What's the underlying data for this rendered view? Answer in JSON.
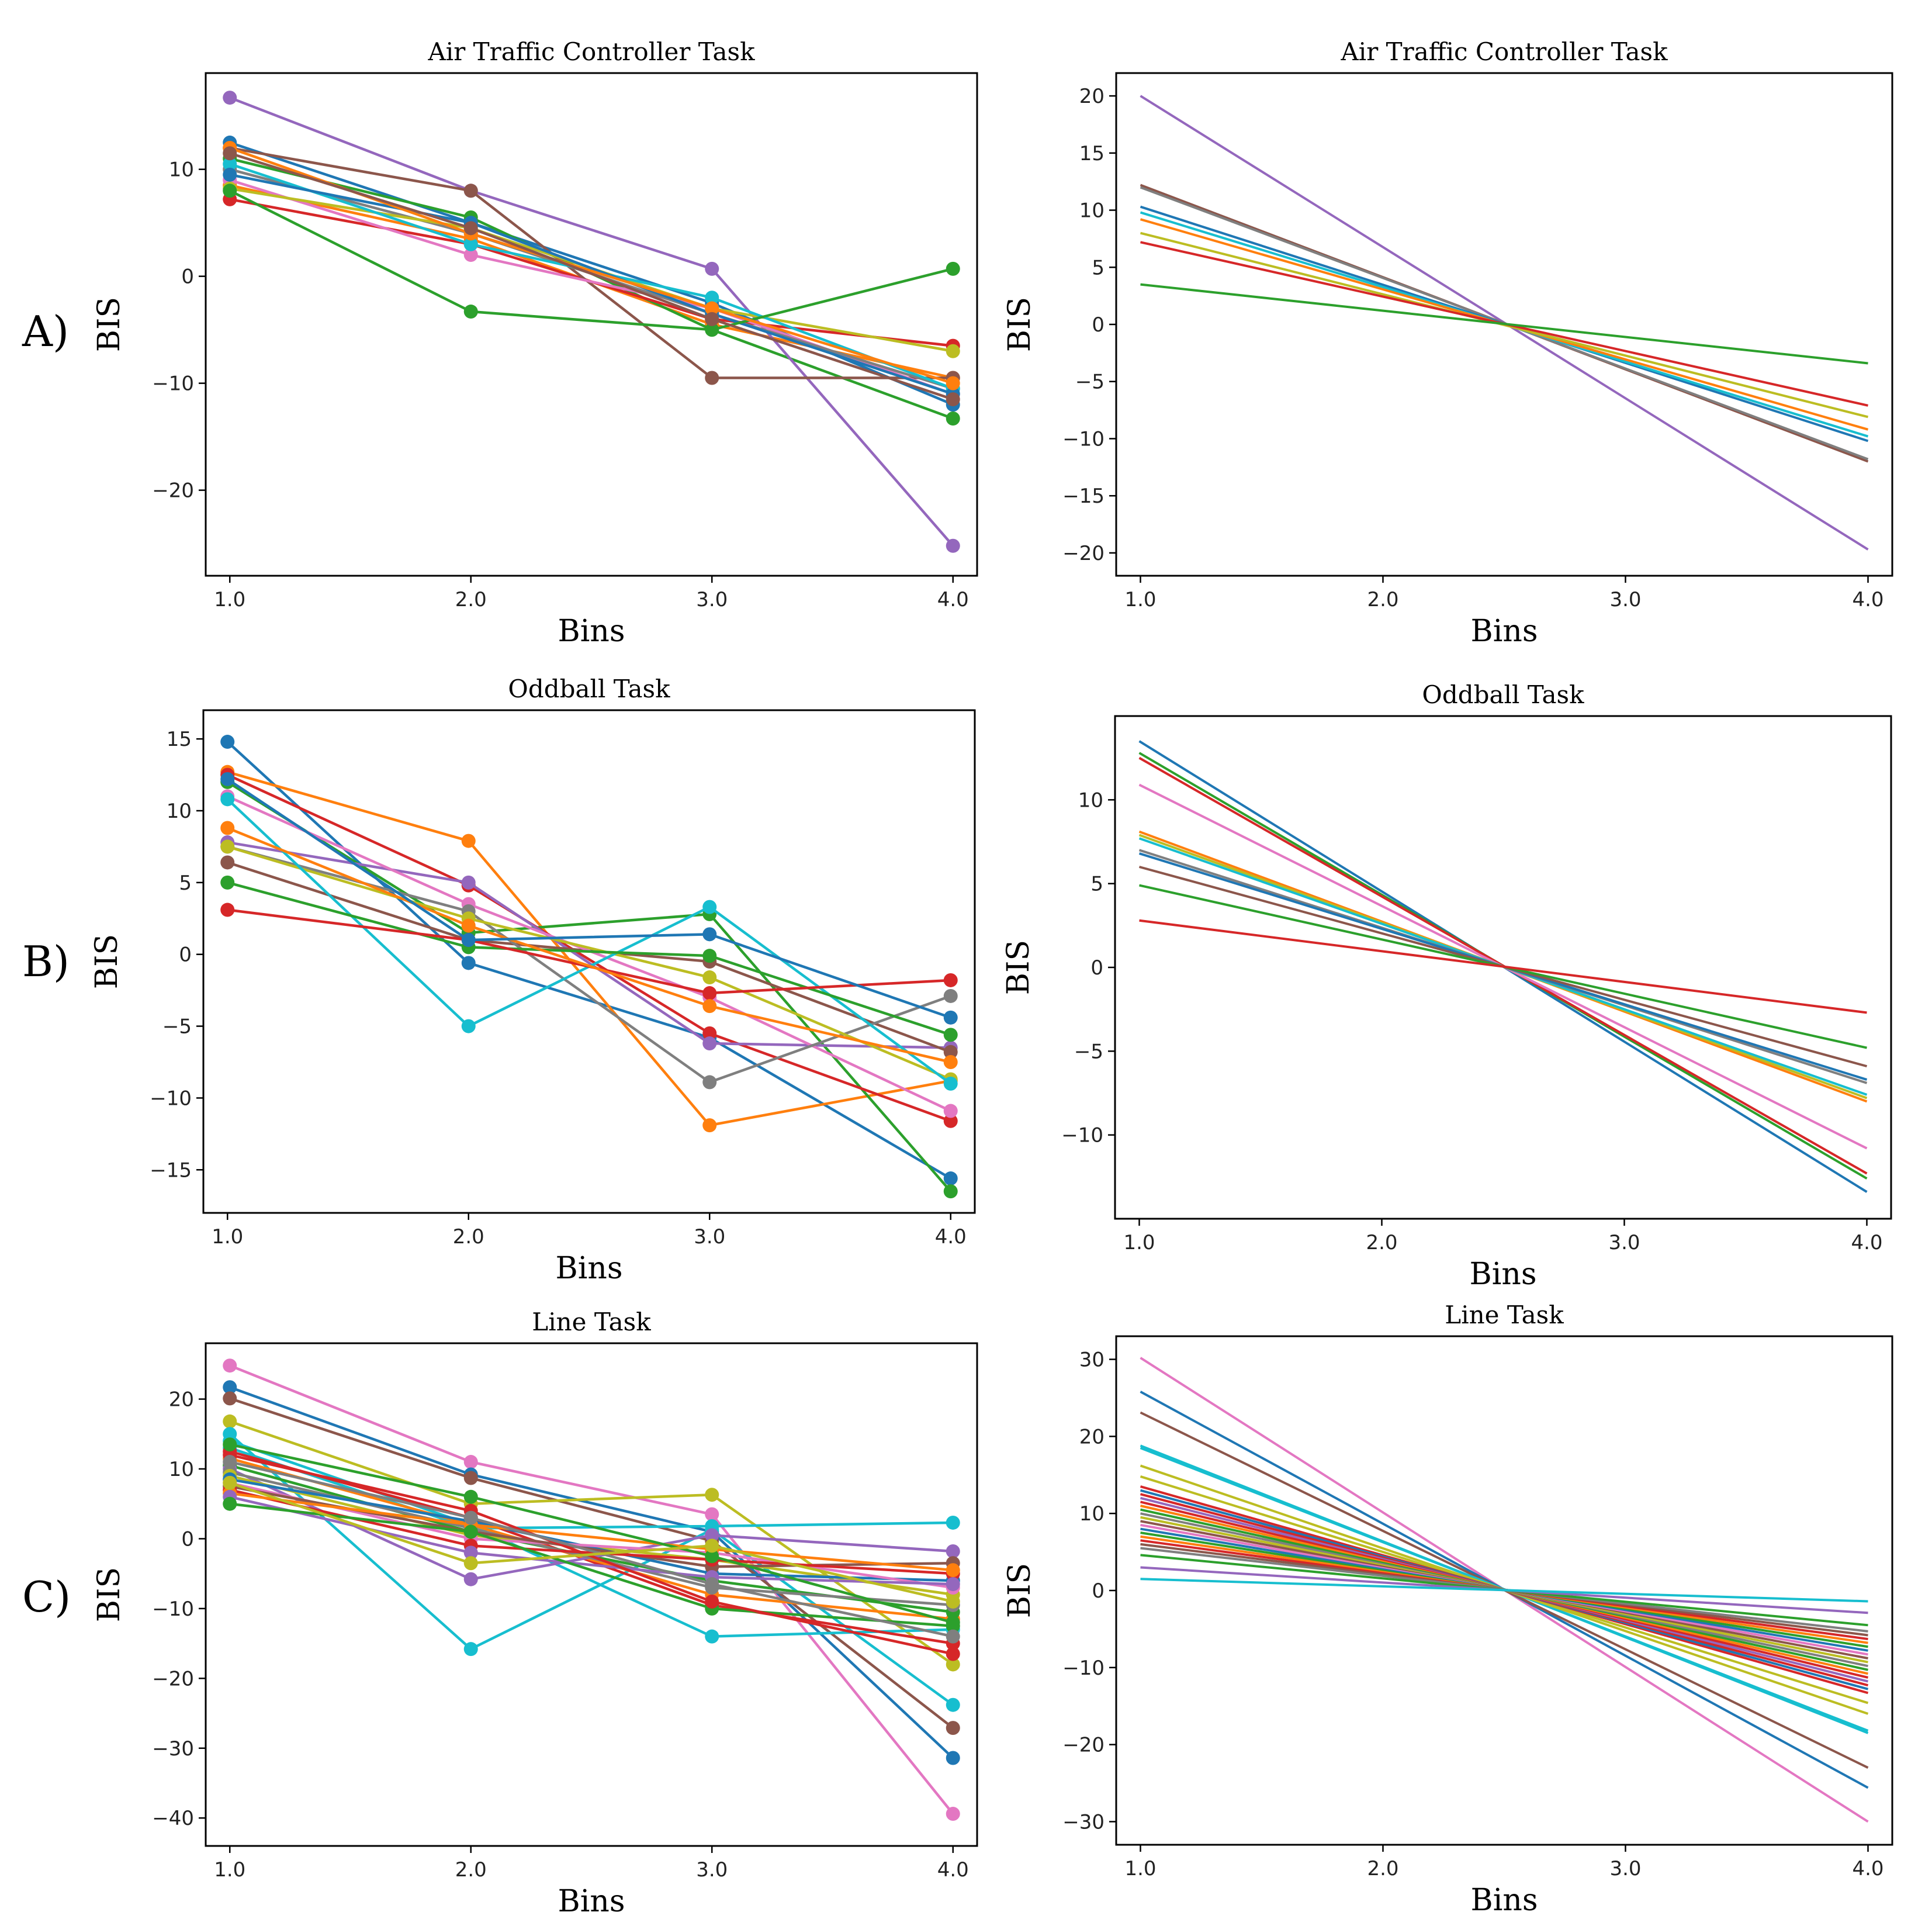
{
  "palette": [
    "#1f77b4",
    "#ff7f0e",
    "#2ca02c",
    "#d62728",
    "#9467bd",
    "#8c564b",
    "#e377c2",
    "#7f7f7f",
    "#bcbd22",
    "#17becf"
  ],
  "row_labels": [
    "A)",
    "B)",
    "C)"
  ],
  "chart_data": [
    {
      "id": "a-left",
      "type": "line",
      "markers": true,
      "title": "Air Traffic Controller Task",
      "xlabel": "Bins",
      "ylabel": "BIS",
      "xlim": [
        0.9,
        4.1
      ],
      "ylim": [
        -28,
        19
      ],
      "xticks": [
        1,
        2,
        3,
        4
      ],
      "xtick_labels": [
        "1.0",
        "2.0",
        "3.0",
        "4.0"
      ],
      "yticks": [
        -20,
        -10,
        0,
        10
      ],
      "ytick_labels": [
        "−20",
        "−10",
        "0",
        "10"
      ],
      "x": [
        1,
        2,
        3,
        4
      ],
      "series": [
        {
          "values": [
            12.5,
            5.0,
            -2.5,
            -12.0
          ],
          "color": "#1f77b4"
        },
        {
          "values": [
            8.5,
            3.5,
            -4.5,
            -9.5
          ],
          "color": "#ff7f0e"
        },
        {
          "values": [
            11.0,
            5.5,
            -5.0,
            -13.3
          ],
          "color": "#2ca02c"
        },
        {
          "values": [
            7.2,
            3.0,
            -4.0,
            -6.5
          ],
          "color": "#d62728"
        },
        {
          "values": [
            16.7,
            8.0,
            0.7,
            -25.2
          ],
          "color": "#9467bd"
        },
        {
          "values": [
            12.0,
            8.0,
            -9.5,
            -9.5
          ],
          "color": "#8c564b"
        },
        {
          "values": [
            9.0,
            2.0,
            -3.0,
            -11.0
          ],
          "color": "#e377c2"
        },
        {
          "values": [
            10.0,
            4.0,
            -3.5,
            -10.5
          ],
          "color": "#7f7f7f"
        },
        {
          "values": [
            8.2,
            4.5,
            -3.0,
            -7.0
          ],
          "color": "#bcbd22"
        },
        {
          "values": [
            10.5,
            3.0,
            -2.0,
            -10.5
          ],
          "color": "#17becf"
        },
        {
          "values": [
            9.5,
            5.0,
            -3.5,
            -11.0
          ],
          "color": "#1f77b4"
        },
        {
          "values": [
            8.0,
            -3.3,
            -5.0,
            0.7
          ],
          "color": "#2ca02c"
        },
        {
          "values": [
            12.0,
            4.0,
            -3.0,
            -10.0
          ],
          "color": "#ff7f0e"
        },
        {
          "values": [
            11.5,
            4.5,
            -4.0,
            -11.5
          ],
          "color": "#8c564b"
        }
      ]
    },
    {
      "id": "a-right",
      "type": "line",
      "markers": false,
      "title": "Air Traffic Controller Task",
      "xlabel": "Bins",
      "ylabel": "BIS",
      "xlim": [
        0.9,
        4.1
      ],
      "ylim": [
        -22,
        22
      ],
      "xticks": [
        1,
        2,
        3,
        4
      ],
      "xtick_labels": [
        "1.0",
        "2.0",
        "3.0",
        "4.0"
      ],
      "yticks": [
        -20,
        -15,
        -10,
        -5,
        0,
        5,
        10,
        15,
        20
      ],
      "ytick_labels": [
        "−20",
        "−15",
        "−10",
        "−5",
        "0",
        "5",
        "10",
        "15",
        "20"
      ],
      "x": [
        1,
        4
      ],
      "series": [
        {
          "values": [
            20.0,
            -19.7
          ],
          "color": "#9467bd"
        },
        {
          "values": [
            12.2,
            -12.0
          ],
          "color": "#8c564b"
        },
        {
          "values": [
            12.0,
            -11.8
          ],
          "color": "#7f7f7f"
        },
        {
          "values": [
            10.3,
            -10.2
          ],
          "color": "#1f77b4"
        },
        {
          "values": [
            9.8,
            -9.8
          ],
          "color": "#17becf"
        },
        {
          "values": [
            9.2,
            -9.2
          ],
          "color": "#ff7f0e"
        },
        {
          "values": [
            8.0,
            -8.1
          ],
          "color": "#bcbd22"
        },
        {
          "values": [
            7.2,
            -7.1
          ],
          "color": "#d62728"
        },
        {
          "values": [
            3.5,
            -3.4
          ],
          "color": "#2ca02c"
        }
      ]
    },
    {
      "id": "b-left",
      "type": "line",
      "markers": true,
      "title": "Oddball Task",
      "xlabel": "Bins",
      "ylabel": "BIS",
      "xlim": [
        0.9,
        4.1
      ],
      "ylim": [
        -18,
        17
      ],
      "xticks": [
        1,
        2,
        3,
        4
      ],
      "xtick_labels": [
        "1.0",
        "2.0",
        "3.0",
        "4.0"
      ],
      "yticks": [
        -15,
        -10,
        -5,
        0,
        5,
        10,
        15
      ],
      "ytick_labels": [
        "−15",
        "−10",
        "−5",
        "0",
        "5",
        "10",
        "15"
      ],
      "x": [
        1,
        2,
        3,
        4
      ],
      "series": [
        {
          "values": [
            14.8,
            -0.6,
            -5.8,
            -15.6
          ],
          "color": "#1f77b4"
        },
        {
          "values": [
            12.7,
            7.9,
            -11.9,
            -8.8
          ],
          "color": "#ff7f0e"
        },
        {
          "values": [
            12.0,
            1.5,
            2.8,
            -16.5
          ],
          "color": "#2ca02c"
        },
        {
          "values": [
            12.5,
            4.8,
            -5.5,
            -11.6
          ],
          "color": "#d62728"
        },
        {
          "values": [
            7.8,
            5.0,
            -6.2,
            -6.5
          ],
          "color": "#9467bd"
        },
        {
          "values": [
            6.4,
            1.0,
            -0.5,
            -6.8
          ],
          "color": "#8c564b"
        },
        {
          "values": [
            11.0,
            3.5,
            -3.0,
            -10.9
          ],
          "color": "#e377c2"
        },
        {
          "values": [
            7.5,
            3.0,
            -8.9,
            -2.9
          ],
          "color": "#7f7f7f"
        },
        {
          "values": [
            7.5,
            2.5,
            -1.6,
            -8.7
          ],
          "color": "#bcbd22"
        },
        {
          "values": [
            10.8,
            -5.0,
            3.3,
            -9.0
          ],
          "color": "#17becf"
        },
        {
          "values": [
            5.0,
            0.5,
            -0.1,
            -5.6
          ],
          "color": "#2ca02c"
        },
        {
          "values": [
            3.1,
            1.0,
            -2.7,
            -1.8
          ],
          "color": "#d62728"
        },
        {
          "values": [
            8.8,
            2.0,
            -3.6,
            -7.5
          ],
          "color": "#ff7f0e"
        },
        {
          "values": [
            12.2,
            1.0,
            1.4,
            -4.4
          ],
          "color": "#1f77b4"
        }
      ]
    },
    {
      "id": "b-right",
      "type": "line",
      "markers": false,
      "title": "Oddball Task",
      "xlabel": "Bins",
      "ylabel": "BIS",
      "xlim": [
        0.9,
        4.1
      ],
      "ylim": [
        -15,
        15
      ],
      "xticks": [
        1,
        2,
        3,
        4
      ],
      "xtick_labels": [
        "1.0",
        "2.0",
        "3.0",
        "4.0"
      ],
      "yticks": [
        -10,
        -5,
        0,
        5,
        10
      ],
      "ytick_labels": [
        "−10",
        "−5",
        "0",
        "5",
        "10"
      ],
      "x": [
        1,
        4
      ],
      "series": [
        {
          "values": [
            13.5,
            -13.4
          ],
          "color": "#1f77b4"
        },
        {
          "values": [
            12.8,
            -12.6
          ],
          "color": "#2ca02c"
        },
        {
          "values": [
            12.5,
            -12.3
          ],
          "color": "#d62728"
        },
        {
          "values": [
            10.9,
            -10.8
          ],
          "color": "#e377c2"
        },
        {
          "values": [
            8.1,
            -8.0
          ],
          "color": "#ff7f0e"
        },
        {
          "values": [
            7.9,
            -7.8
          ],
          "color": "#bcbd22"
        },
        {
          "values": [
            7.7,
            -7.6
          ],
          "color": "#17becf"
        },
        {
          "values": [
            7.0,
            -6.9
          ],
          "color": "#7f7f7f"
        },
        {
          "values": [
            6.8,
            -6.7
          ],
          "color": "#1f77b4"
        },
        {
          "values": [
            6.0,
            -5.9
          ],
          "color": "#8c564b"
        },
        {
          "values": [
            4.9,
            -4.8
          ],
          "color": "#2ca02c"
        },
        {
          "values": [
            2.8,
            -2.7
          ],
          "color": "#d62728"
        }
      ]
    },
    {
      "id": "c-left",
      "type": "line",
      "markers": true,
      "title": "Line Task",
      "xlabel": "Bins",
      "ylabel": "BIS",
      "xlim": [
        0.9,
        4.1
      ],
      "ylim": [
        -44,
        28
      ],
      "xticks": [
        1,
        2,
        3,
        4
      ],
      "xtick_labels": [
        "1.0",
        "2.0",
        "3.0",
        "4.0"
      ],
      "yticks": [
        -40,
        -30,
        -20,
        -10,
        0,
        10,
        20
      ],
      "ytick_labels": [
        "−40",
        "−30",
        "−20",
        "−10",
        "0",
        "10",
        "20"
      ],
      "x": [
        1,
        2,
        3,
        4
      ],
      "series": [
        {
          "values": [
            24.8,
            11.0,
            3.5,
            -39.4
          ],
          "color": "#e377c2"
        },
        {
          "values": [
            21.7,
            9.2,
            1.0,
            -31.4
          ],
          "color": "#1f77b4"
        },
        {
          "values": [
            20.1,
            8.7,
            -0.3,
            -27.1
          ],
          "color": "#8c564b"
        },
        {
          "values": [
            16.8,
            5.0,
            6.3,
            -18.0
          ],
          "color": "#bcbd22"
        },
        {
          "values": [
            15.0,
            -15.8,
            1.3,
            -23.8
          ],
          "color": "#17becf"
        },
        {
          "values": [
            14.0,
            2.0,
            -14.0,
            -13.0
          ],
          "color": "#17becf"
        },
        {
          "values": [
            13.0,
            1.5,
            1.8,
            2.3
          ],
          "color": "#17becf"
        },
        {
          "values": [
            12.5,
            3.0,
            -9.5,
            -15.0
          ],
          "color": "#d62728"
        },
        {
          "values": [
            11.5,
            2.0,
            -8.0,
            -11.5
          ],
          "color": "#ff7f0e"
        },
        {
          "values": [
            10.5,
            1.0,
            -6.0,
            -10.5
          ],
          "color": "#2ca02c"
        },
        {
          "values": [
            10.0,
            -5.8,
            0.5,
            -1.8
          ],
          "color": "#9467bd"
        },
        {
          "values": [
            9.5,
            1.5,
            -7.0,
            -9.5
          ],
          "color": "#7f7f7f"
        },
        {
          "values": [
            9.0,
            0.5,
            -3.0,
            -8.0
          ],
          "color": "#bcbd22"
        },
        {
          "values": [
            8.5,
            2.5,
            -5.0,
            -6.0
          ],
          "color": "#1f77b4"
        },
        {
          "values": [
            8.0,
            0.0,
            -2.0,
            -7.0
          ],
          "color": "#e377c2"
        },
        {
          "values": [
            7.5,
            1.0,
            -4.0,
            -3.5
          ],
          "color": "#8c564b"
        },
        {
          "values": [
            7.0,
            -1.0,
            -3.0,
            -5.0
          ],
          "color": "#d62728"
        },
        {
          "values": [
            6.5,
            2.0,
            -1.5,
            -4.5
          ],
          "color": "#ff7f0e"
        },
        {
          "values": [
            6.0,
            -2.0,
            -5.5,
            -6.5
          ],
          "color": "#9467bd"
        },
        {
          "values": [
            5.0,
            1.0,
            -10.0,
            -12.5
          ],
          "color": "#2ca02c"
        },
        {
          "values": [
            12.0,
            4.0,
            -9.0,
            -16.5
          ],
          "color": "#d62728"
        },
        {
          "values": [
            11.0,
            3.0,
            -6.5,
            -14.0
          ],
          "color": "#7f7f7f"
        },
        {
          "values": [
            13.5,
            6.0,
            -2.5,
            -12.0
          ],
          "color": "#2ca02c"
        },
        {
          "values": [
            8.0,
            -3.5,
            -1.0,
            -9.0
          ],
          "color": "#bcbd22"
        }
      ]
    },
    {
      "id": "c-right",
      "type": "line",
      "markers": false,
      "title": "Line Task",
      "xlabel": "Bins",
      "ylabel": "BIS",
      "xlim": [
        0.9,
        4.1
      ],
      "ylim": [
        -33,
        33
      ],
      "xticks": [
        1,
        2,
        3,
        4
      ],
      "xtick_labels": [
        "1.0",
        "2.0",
        "3.0",
        "4.0"
      ],
      "yticks": [
        -30,
        -20,
        -10,
        0,
        10,
        20,
        30
      ],
      "ytick_labels": [
        "−30",
        "−20",
        "−10",
        "0",
        "10",
        "20",
        "30"
      ],
      "x": [
        1,
        4
      ],
      "series": [
        {
          "values": [
            30.2,
            -30.0
          ],
          "color": "#e377c2"
        },
        {
          "values": [
            25.8,
            -25.6
          ],
          "color": "#1f77b4"
        },
        {
          "values": [
            23.1,
            -23.0
          ],
          "color": "#8c564b"
        },
        {
          "values": [
            18.8,
            -18.5
          ],
          "color": "#17becf"
        },
        {
          "values": [
            18.5,
            -18.2
          ],
          "color": "#17becf"
        },
        {
          "values": [
            16.2,
            -16.0
          ],
          "color": "#bcbd22"
        },
        {
          "values": [
            14.8,
            -14.6
          ],
          "color": "#bcbd22"
        },
        {
          "values": [
            13.5,
            -13.3
          ],
          "color": "#d62728"
        },
        {
          "values": [
            13.0,
            -12.8
          ],
          "color": "#1f77b4"
        },
        {
          "values": [
            12.5,
            -12.3
          ],
          "color": "#d62728"
        },
        {
          "values": [
            12.0,
            -11.8
          ],
          "color": "#9467bd"
        },
        {
          "values": [
            11.5,
            -11.3
          ],
          "color": "#d62728"
        },
        {
          "values": [
            11.0,
            -10.8
          ],
          "color": "#ff7f0e"
        },
        {
          "values": [
            10.5,
            -10.3
          ],
          "color": "#2ca02c"
        },
        {
          "values": [
            10.0,
            -9.8
          ],
          "color": "#7f7f7f"
        },
        {
          "values": [
            9.5,
            -9.3
          ],
          "color": "#bcbd22"
        },
        {
          "values": [
            9.0,
            -8.8
          ],
          "color": "#8c564b"
        },
        {
          "values": [
            8.5,
            -8.3
          ],
          "color": "#e377c2"
        },
        {
          "values": [
            8.0,
            -7.8
          ],
          "color": "#1f77b4"
        },
        {
          "values": [
            7.5,
            -7.3
          ],
          "color": "#2ca02c"
        },
        {
          "values": [
            7.0,
            -6.8
          ],
          "color": "#ff7f0e"
        },
        {
          "values": [
            6.5,
            -6.3
          ],
          "color": "#d62728"
        },
        {
          "values": [
            6.0,
            -5.8
          ],
          "color": "#8c564b"
        },
        {
          "values": [
            5.5,
            -5.3
          ],
          "color": "#7f7f7f"
        },
        {
          "values": [
            4.6,
            -4.5
          ],
          "color": "#2ca02c"
        },
        {
          "values": [
            3.0,
            -2.9
          ],
          "color": "#9467bd"
        },
        {
          "values": [
            1.5,
            -1.4
          ],
          "color": "#17becf"
        }
      ]
    }
  ]
}
